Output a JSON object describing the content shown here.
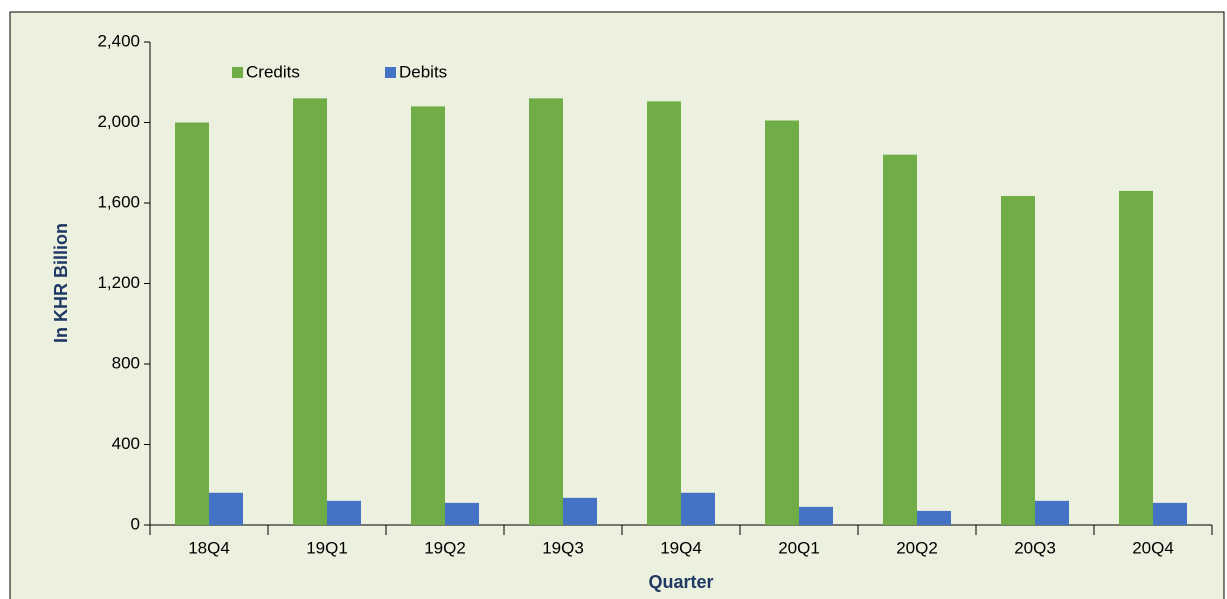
{
  "chart_data": {
    "type": "bar",
    "categories": [
      "18Q4",
      "19Q1",
      "19Q2",
      "19Q3",
      "19Q4",
      "20Q1",
      "20Q2",
      "20Q3",
      "20Q4"
    ],
    "series": [
      {
        "name": "Credits",
        "color": "#70ad47",
        "values": [
          2000,
          2120,
          2080,
          2120,
          2105,
          2010,
          1840,
          1635,
          1660
        ]
      },
      {
        "name": "Debits",
        "color": "#4472c4",
        "values": [
          160,
          120,
          110,
          135,
          160,
          90,
          70,
          120,
          110
        ]
      }
    ],
    "x_label": "Quarter",
    "y_label": "In KHR Billion",
    "ylim": [
      0,
      2400
    ],
    "yticks": [
      0,
      400,
      800,
      {
        "value": 1200,
        "label": "1,200"
      },
      {
        "value": 1600,
        "label": "1,600"
      },
      {
        "value": 2000,
        "label": "2,000"
      },
      {
        "value": 2400,
        "label": "2,400"
      }
    ],
    "grid": false,
    "legend": "top-left"
  }
}
